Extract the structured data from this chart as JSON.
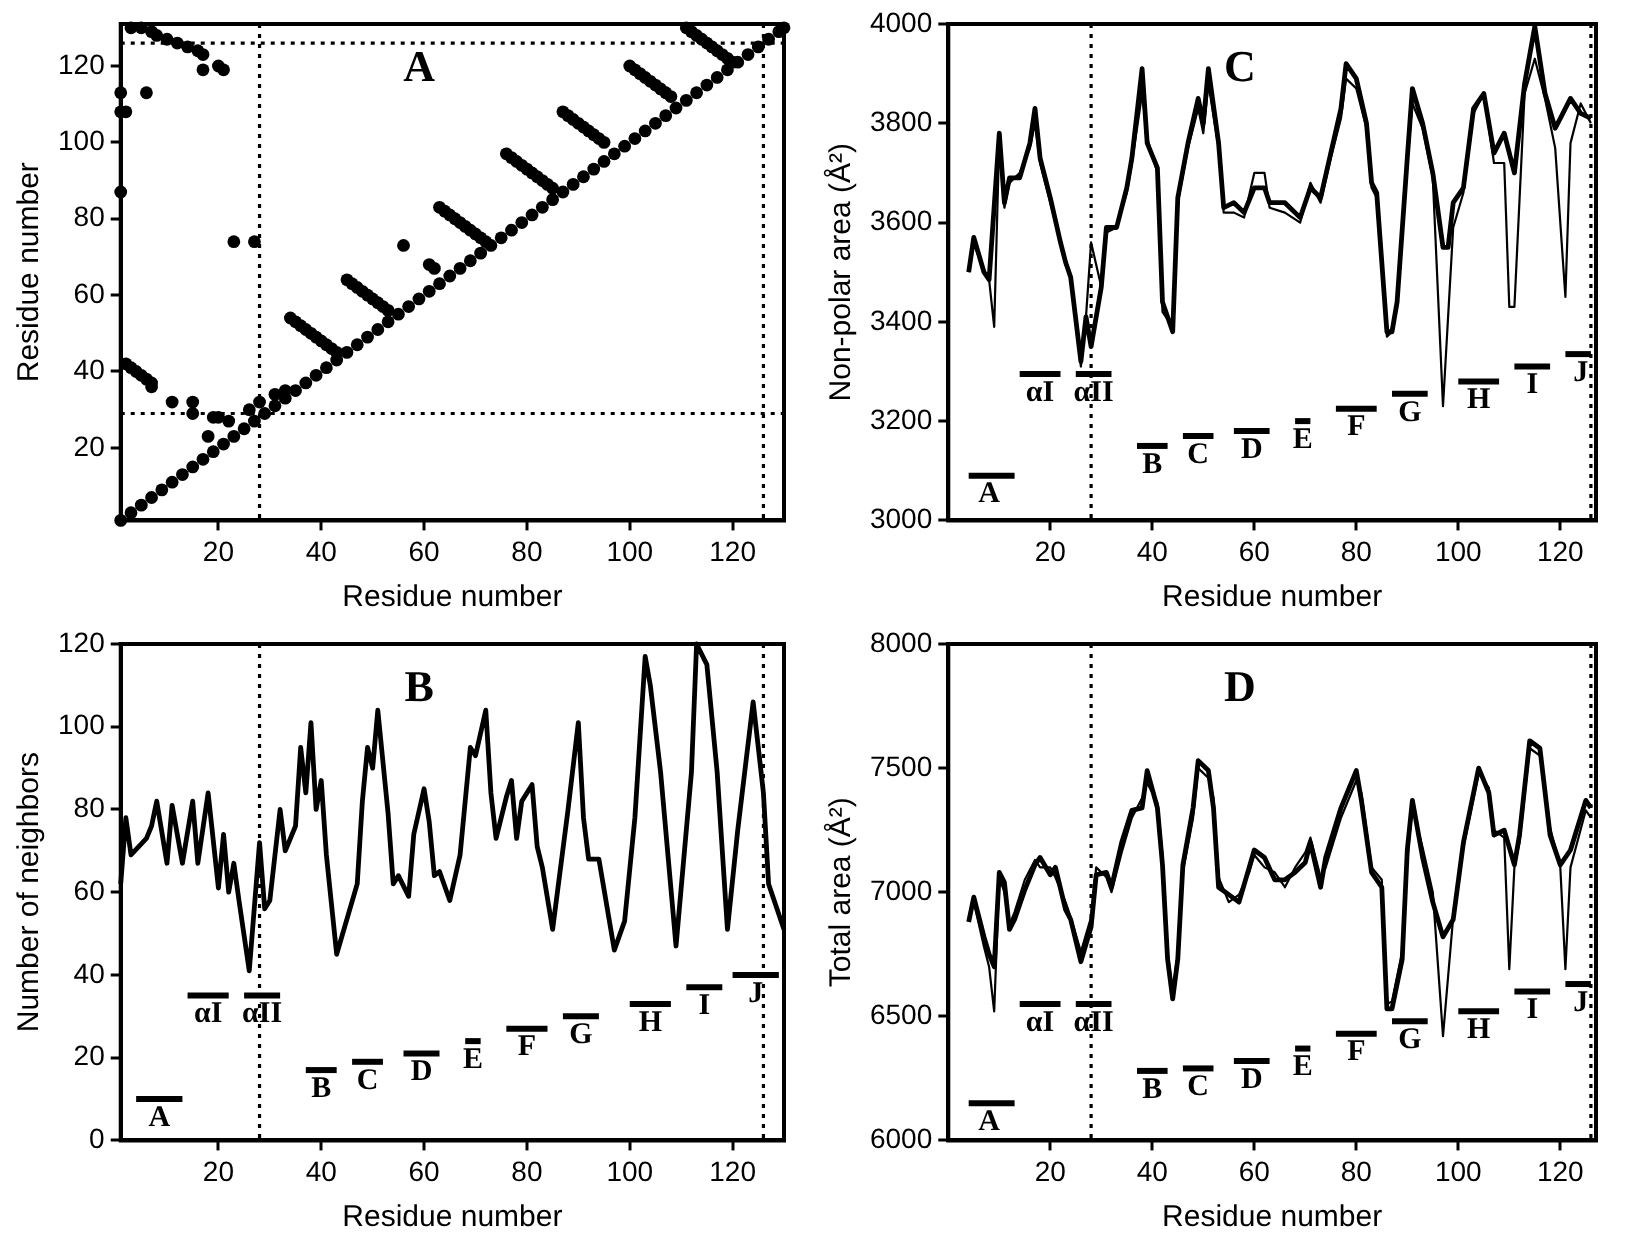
{
  "chart_data": [
    {
      "type": "scatter",
      "title": "A",
      "xlabel": "Residue number",
      "ylabel": "Residue number",
      "xlim": [
        1,
        130
      ],
      "ylim": [
        1,
        131
      ],
      "xticks": [
        20,
        40,
        60,
        80,
        100,
        120
      ],
      "yticks": [
        20,
        40,
        60,
        80,
        100,
        120
      ],
      "marker": "circle",
      "ref_lines": [
        {
          "axis": "x",
          "value": 28,
          "line_style": "dotted"
        },
        {
          "axis": "x",
          "value": 126,
          "line_style": "dotted"
        },
        {
          "axis": "y",
          "value": 29,
          "line_style": "dotted"
        },
        {
          "axis": "y",
          "value": 126,
          "line_style": "dotted"
        }
      ],
      "series": [
        {
          "color": "#000000",
          "x": [
            1,
            3,
            5,
            7,
            9,
            11,
            13,
            15,
            17,
            19,
            21,
            23,
            25,
            27,
            29,
            31,
            33,
            35,
            37,
            39,
            41,
            43,
            45,
            47,
            49,
            51,
            53,
            55,
            57,
            59,
            61,
            63,
            65,
            67,
            69,
            71,
            73,
            75,
            77,
            79,
            81,
            83,
            85,
            87,
            89,
            91,
            93,
            95,
            97,
            99,
            101,
            103,
            105,
            107,
            109,
            111,
            113,
            115,
            117,
            119,
            121,
            123,
            125,
            127,
            129,
            130,
            34,
            35,
            36,
            37,
            38,
            39,
            40,
            41,
            42,
            43,
            45,
            46,
            47,
            48,
            49,
            50,
            51,
            52,
            53,
            63,
            64,
            65,
            66,
            67,
            68,
            69,
            70,
            71,
            72,
            76,
            77,
            78,
            79,
            80,
            81,
            82,
            83,
            84,
            85,
            87,
            88,
            89,
            90,
            91,
            92,
            93,
            94,
            95,
            100,
            101,
            102,
            103,
            104,
            105,
            106,
            107,
            108,
            111,
            112,
            113,
            114,
            115,
            116,
            117,
            118,
            119,
            120,
            3,
            5,
            7,
            8,
            10,
            12,
            14,
            16,
            17,
            17,
            20,
            21,
            1,
            1,
            2,
            6,
            1,
            23,
            27,
            56,
            61,
            62,
            2,
            3,
            4,
            5,
            6,
            7,
            7,
            11,
            15,
            15,
            19,
            20,
            18,
            22,
            26,
            28,
            31,
            33
          ],
          "values": [
            1,
            3,
            5,
            7,
            9,
            11,
            13,
            15,
            17,
            19,
            21,
            23,
            25,
            27,
            29,
            31,
            33,
            35,
            37,
            39,
            41,
            43,
            45,
            47,
            49,
            51,
            53,
            55,
            57,
            59,
            61,
            63,
            65,
            67,
            69,
            71,
            73,
            75,
            77,
            79,
            81,
            83,
            85,
            87,
            89,
            91,
            93,
            95,
            97,
            99,
            101,
            103,
            105,
            107,
            109,
            111,
            113,
            115,
            117,
            119,
            121,
            123,
            125,
            127,
            129,
            130,
            54,
            53,
            52,
            51,
            50,
            49,
            48,
            47,
            46,
            45,
            64,
            63,
            62,
            61,
            60,
            59,
            58,
            57,
            56,
            83,
            82,
            81,
            80,
            79,
            78,
            77,
            76,
            75,
            74,
            97,
            96,
            95,
            94,
            93,
            92,
            91,
            90,
            89,
            88,
            108,
            107,
            106,
            105,
            104,
            103,
            102,
            101,
            100,
            120,
            119,
            118,
            117,
            116,
            115,
            114,
            113,
            112,
            130,
            129,
            128,
            127,
            126,
            125,
            124,
            123,
            122,
            121,
            130,
            130,
            129,
            128,
            127,
            126,
            125,
            124,
            123,
            119,
            120,
            119,
            113,
            108,
            108,
            113,
            87,
            74,
            74,
            73,
            68,
            67,
            42,
            41,
            40,
            39,
            38,
            37,
            36,
            32,
            32,
            29,
            28,
            28,
            23,
            27,
            30,
            32,
            34,
            35
          ]
        }
      ]
    },
    {
      "type": "line",
      "title": "C",
      "xlabel": "Residue number",
      "ylabel": "Non-polar area (Å²)",
      "xlim": [
        0,
        127
      ],
      "ylim": [
        3000,
        4000
      ],
      "xticks": [
        20,
        40,
        60,
        80,
        100,
        120
      ],
      "yticks": [
        3000,
        3200,
        3400,
        3600,
        3800,
        4000
      ],
      "marker": "none",
      "line_style": "solid",
      "ref_lines": [
        {
          "axis": "x",
          "value": 28,
          "line_style": "dotted"
        },
        {
          "axis": "x",
          "value": 126,
          "line_style": "dotted"
        }
      ],
      "annotations": [
        {
          "text": "A",
          "x": 8,
          "y": 3090
        },
        {
          "text": "αI",
          "x": 18,
          "y": 3295
        },
        {
          "text": "αII",
          "x": 28.5,
          "y": 3295
        },
        {
          "text": "B",
          "x": 40,
          "y": 3150
        },
        {
          "text": "C",
          "x": 49,
          "y": 3170
        },
        {
          "text": "D",
          "x": 59.5,
          "y": 3180
        },
        {
          "text": "E",
          "x": 69.5,
          "y": 3200
        },
        {
          "text": "F",
          "x": 80,
          "y": 3225
        },
        {
          "text": "G",
          "x": 90.5,
          "y": 3255
        },
        {
          "text": "H",
          "x": 104,
          "y": 3280
        },
        {
          "text": "I",
          "x": 114.5,
          "y": 3310
        },
        {
          "text": "J",
          "x": 124,
          "y": 3335
        }
      ],
      "series": [
        {
          "color": "#000000",
          "x": [
            4,
            5,
            7,
            8,
            10,
            11,
            12,
            14,
            16,
            17,
            18,
            20,
            22,
            23,
            24,
            26,
            27,
            28,
            30,
            31,
            33,
            35,
            36,
            38,
            39,
            41,
            42,
            44,
            45,
            47,
            49,
            50,
            51,
            53,
            54,
            56,
            58,
            60,
            62,
            63,
            66,
            69,
            71,
            73,
            75,
            77,
            78,
            80,
            82,
            83,
            84,
            86,
            87,
            88,
            90,
            91,
            93,
            95,
            97,
            98,
            99,
            101,
            103,
            105,
            107,
            109,
            111,
            113,
            115,
            117,
            119,
            120,
            122,
            124,
            126
          ],
          "values": [
            3500,
            3570,
            3500,
            3485,
            3780,
            3640,
            3690,
            3690,
            3760,
            3830,
            3730,
            3650,
            3560,
            3520,
            3490,
            3320,
            3410,
            3350,
            3470,
            3590,
            3590,
            3670,
            3730,
            3910,
            3760,
            3710,
            3440,
            3380,
            3650,
            3760,
            3850,
            3800,
            3910,
            3760,
            3630,
            3640,
            3620,
            3670,
            3670,
            3640,
            3640,
            3610,
            3670,
            3650,
            3740,
            3830,
            3920,
            3890,
            3800,
            3680,
            3660,
            3380,
            3380,
            3440,
            3730,
            3870,
            3800,
            3700,
            3550,
            3550,
            3640,
            3670,
            3830,
            3860,
            3740,
            3780,
            3700,
            3880,
            3995,
            3860,
            3790,
            3810,
            3850,
            3820,
            3810
          ]
        },
        {
          "color": "#000000",
          "x": [
            4,
            5,
            7,
            8,
            9,
            10,
            11,
            12,
            14,
            16,
            17,
            18,
            20,
            22,
            23,
            24,
            26,
            27,
            28,
            30,
            31,
            33,
            35,
            36,
            38,
            39,
            41,
            42,
            44,
            45,
            47,
            49,
            50,
            51,
            53,
            54,
            56,
            58,
            60,
            62,
            63,
            66,
            69,
            71,
            73,
            75,
            77,
            78,
            80,
            82,
            83,
            84,
            86,
            87,
            88,
            90,
            91,
            93,
            95,
            97,
            99,
            101,
            103,
            105,
            107,
            109,
            110,
            111,
            113,
            115,
            117,
            119,
            121,
            122,
            124,
            126
          ],
          "values": [
            3500,
            3560,
            3500,
            3485,
            3390,
            3770,
            3630,
            3680,
            3700,
            3750,
            3800,
            3720,
            3640,
            3560,
            3520,
            3490,
            3310,
            3410,
            3560,
            3470,
            3580,
            3590,
            3660,
            3720,
            3860,
            3770,
            3700,
            3420,
            3390,
            3640,
            3750,
            3830,
            3780,
            3880,
            3750,
            3620,
            3620,
            3610,
            3700,
            3700,
            3630,
            3620,
            3600,
            3680,
            3640,
            3730,
            3810,
            3890,
            3870,
            3790,
            3670,
            3650,
            3370,
            3380,
            3430,
            3720,
            3840,
            3790,
            3690,
            3230,
            3590,
            3660,
            3820,
            3860,
            3720,
            3720,
            3430,
            3430,
            3860,
            3930,
            3850,
            3750,
            3450,
            3760,
            3840,
            3800
          ]
        },
        {
          "color": "#000000",
          "x": [
            4,
            13
          ],
          "values": [
            3090,
            3090
          ]
        },
        {
          "color": "#000000",
          "x": [
            14,
            22
          ],
          "values": [
            3295,
            3295
          ]
        },
        {
          "color": "#000000",
          "x": [
            25,
            32
          ],
          "values": [
            3295,
            3295
          ]
        },
        {
          "color": "#000000",
          "x": [
            37,
            43
          ],
          "values": [
            3150,
            3150
          ]
        },
        {
          "color": "#000000",
          "x": [
            46,
            52
          ],
          "values": [
            3170,
            3170
          ]
        },
        {
          "color": "#000000",
          "x": [
            56,
            63
          ],
          "values": [
            3180,
            3180
          ]
        },
        {
          "color": "#000000",
          "x": [
            68,
            71
          ],
          "values": [
            3200,
            3200
          ]
        },
        {
          "color": "#000000",
          "x": [
            76,
            84
          ],
          "values": [
            3225,
            3225
          ]
        },
        {
          "color": "#000000",
          "x": [
            87,
            94
          ],
          "values": [
            3255,
            3255
          ]
        },
        {
          "color": "#000000",
          "x": [
            100,
            108
          ],
          "values": [
            3280,
            3280
          ]
        },
        {
          "color": "#000000",
          "x": [
            111,
            118
          ],
          "values": [
            3310,
            3310
          ]
        },
        {
          "color": "#000000",
          "x": [
            121,
            126
          ],
          "values": [
            3335,
            3335
          ]
        }
      ]
    },
    {
      "type": "line",
      "title": "B",
      "xlabel": "Residue number",
      "ylabel": "Number of neighbors",
      "xlim": [
        1,
        130
      ],
      "ylim": [
        0,
        120
      ],
      "xticks": [
        20,
        40,
        60,
        80,
        100,
        120
      ],
      "yticks": [
        0,
        20,
        40,
        60,
        80,
        100,
        120
      ],
      "marker": "none",
      "line_style": "solid",
      "ref_lines": [
        {
          "axis": "x",
          "value": 28,
          "line_style": "dotted"
        },
        {
          "axis": "x",
          "value": 126,
          "line_style": "dotted"
        }
      ],
      "annotations": [
        {
          "text": "A",
          "x": 8.5,
          "y": 10
        },
        {
          "text": "αI",
          "x": 18,
          "y": 35
        },
        {
          "text": "αII",
          "x": 28.5,
          "y": 35
        },
        {
          "text": "B",
          "x": 40,
          "y": 17
        },
        {
          "text": "C",
          "x": 49,
          "y": 19
        },
        {
          "text": "D",
          "x": 59.5,
          "y": 21
        },
        {
          "text": "E",
          "x": 69.5,
          "y": 24
        },
        {
          "text": "F",
          "x": 80,
          "y": 27
        },
        {
          "text": "G",
          "x": 90.5,
          "y": 30
        },
        {
          "text": "H",
          "x": 104,
          "y": 33
        },
        {
          "text": "I",
          "x": 114.5,
          "y": 37
        },
        {
          "text": "J",
          "x": 124.5,
          "y": 40
        }
      ],
      "series": [
        {
          "color": "#000000",
          "x": [
            1,
            2,
            3,
            6,
            7,
            8,
            10,
            11,
            13,
            15,
            16,
            18,
            20,
            21,
            22,
            23,
            24,
            26,
            28,
            29,
            30,
            32,
            33,
            35,
            36,
            37,
            38,
            39,
            40,
            41,
            43,
            47,
            48,
            49,
            50,
            51,
            53,
            54,
            55,
            57,
            58,
            60,
            61,
            62,
            63,
            65,
            67,
            69,
            70,
            72,
            73,
            74,
            76,
            77,
            78,
            79,
            81,
            82,
            83,
            85,
            88,
            90,
            91,
            92,
            94,
            97,
            99,
            101,
            103,
            104,
            106,
            109,
            112,
            113,
            115,
            117,
            119,
            121,
            124,
            126,
            127,
            130
          ],
          "values": [
            62,
            78,
            69,
            73,
            76,
            82,
            67,
            81,
            67,
            82,
            67,
            84,
            61,
            74,
            60,
            67,
            58,
            41,
            72,
            56,
            58,
            80,
            70,
            76,
            95,
            84,
            101,
            80,
            87,
            69,
            45,
            62,
            82,
            95,
            90,
            104,
            79,
            62,
            64,
            59,
            74,
            85,
            77,
            64,
            65,
            58,
            69,
            95,
            93,
            104,
            84,
            73,
            83,
            87,
            73,
            82,
            86,
            71,
            66,
            51,
            80,
            101,
            78,
            68,
            68,
            46,
            53,
            78,
            117,
            110,
            89,
            47,
            89,
            120,
            115,
            89,
            51,
            75,
            106,
            84,
            62,
            51
          ]
        },
        {
          "color": "#000000",
          "x": [
            4,
            13
          ],
          "values": [
            10,
            10
          ]
        },
        {
          "color": "#000000",
          "x": [
            14,
            22
          ],
          "values": [
            35,
            35
          ]
        },
        {
          "color": "#000000",
          "x": [
            25,
            32
          ],
          "values": [
            35,
            35
          ]
        },
        {
          "color": "#000000",
          "x": [
            37,
            43
          ],
          "values": [
            17,
            17
          ]
        },
        {
          "color": "#000000",
          "x": [
            46,
            52
          ],
          "values": [
            19,
            19
          ]
        },
        {
          "color": "#000000",
          "x": [
            56,
            63
          ],
          "values": [
            21,
            21
          ]
        },
        {
          "color": "#000000",
          "x": [
            68,
            71
          ],
          "values": [
            24,
            24
          ]
        },
        {
          "color": "#000000",
          "x": [
            76,
            84
          ],
          "values": [
            27,
            27
          ]
        },
        {
          "color": "#000000",
          "x": [
            87,
            94
          ],
          "values": [
            30,
            30
          ]
        },
        {
          "color": "#000000",
          "x": [
            100,
            108
          ],
          "values": [
            33,
            33
          ]
        },
        {
          "color": "#000000",
          "x": [
            111,
            118
          ],
          "values": [
            37,
            37
          ]
        },
        {
          "color": "#000000",
          "x": [
            120,
            129
          ],
          "values": [
            40,
            40
          ]
        }
      ]
    },
    {
      "type": "line",
      "title": "D",
      "xlabel": "Residue number",
      "ylabel": "Total area (Å²)",
      "xlim": [
        0,
        127
      ],
      "ylim": [
        6000,
        8000
      ],
      "xticks": [
        20,
        40,
        60,
        80,
        100,
        120
      ],
      "yticks": [
        6000,
        6500,
        7000,
        7500,
        8000
      ],
      "marker": "none",
      "line_style": "solid",
      "ref_lines": [
        {
          "axis": "x",
          "value": 28,
          "line_style": "dotted"
        },
        {
          "axis": "x",
          "value": 126,
          "line_style": "dotted"
        }
      ],
      "annotations": [
        {
          "text": "A",
          "x": 8,
          "y": 6150
        },
        {
          "text": "αI",
          "x": 18,
          "y": 6550
        },
        {
          "text": "αII",
          "x": 28.5,
          "y": 6550
        },
        {
          "text": "B",
          "x": 40,
          "y": 6280
        },
        {
          "text": "C",
          "x": 49,
          "y": 6290
        },
        {
          "text": "D",
          "x": 59.5,
          "y": 6320
        },
        {
          "text": "E",
          "x": 69.5,
          "y": 6370
        },
        {
          "text": "F",
          "x": 80,
          "y": 6430
        },
        {
          "text": "G",
          "x": 90.5,
          "y": 6480
        },
        {
          "text": "H",
          "x": 104,
          "y": 6520
        },
        {
          "text": "I",
          "x": 114.5,
          "y": 6600
        },
        {
          "text": "J",
          "x": 124,
          "y": 6630
        }
      ],
      "series": [
        {
          "color": "#000000",
          "x": [
            4,
            5,
            7,
            8,
            9,
            10,
            11,
            12,
            13,
            15,
            17,
            18,
            20,
            21,
            23,
            24,
            26,
            28,
            29,
            31,
            32,
            34,
            36,
            38,
            39,
            41,
            42,
            43,
            44,
            45,
            46,
            48,
            49,
            51,
            52,
            53,
            55,
            57,
            59,
            60,
            62,
            64,
            66,
            68,
            70,
            71,
            73,
            74,
            77,
            80,
            81,
            83,
            85,
            86,
            87,
            89,
            90,
            91,
            93,
            95,
            97,
            99,
            101,
            104,
            106,
            107,
            109,
            111,
            112,
            114,
            116,
            118,
            120,
            122,
            125,
            126
          ],
          "values": [
            6880,
            6980,
            6820,
            6750,
            6700,
            7080,
            7040,
            6850,
            6890,
            7010,
            7110,
            7140,
            7070,
            7100,
            6930,
            6890,
            6720,
            6860,
            7070,
            7080,
            7020,
            7200,
            7330,
            7340,
            7490,
            7340,
            7110,
            6730,
            6570,
            6730,
            7110,
            7340,
            7530,
            7490,
            7340,
            7020,
            6990,
            6960,
            7100,
            7170,
            7140,
            7050,
            7050,
            7080,
            7120,
            7200,
            7020,
            7140,
            7340,
            7490,
            7370,
            7080,
            7020,
            6530,
            6530,
            6730,
            7170,
            7370,
            7140,
            6960,
            6820,
            6890,
            7200,
            7500,
            7400,
            7230,
            7250,
            7110,
            7230,
            7610,
            7580,
            7230,
            7110,
            7170,
            7370,
            7340
          ]
        },
        {
          "color": "#000000",
          "x": [
            4,
            5,
            7,
            8,
            9,
            10,
            11,
            12,
            13,
            15,
            17,
            18,
            20,
            21,
            23,
            24,
            26,
            28,
            29,
            31,
            32,
            34,
            36,
            38,
            39,
            41,
            42,
            43,
            44,
            45,
            46,
            48,
            49,
            51,
            52,
            53,
            55,
            57,
            59,
            60,
            62,
            64,
            66,
            68,
            70,
            71,
            73,
            74,
            77,
            80,
            81,
            83,
            85,
            86,
            87,
            89,
            90,
            91,
            93,
            95,
            97,
            99,
            101,
            104,
            106,
            107,
            109,
            110,
            111,
            112,
            114,
            116,
            118,
            120,
            121,
            122,
            125,
            126
          ],
          "values": [
            6900,
            6960,
            6780,
            6700,
            6520,
            7060,
            7000,
            6870,
            6920,
            7050,
            7130,
            7100,
            7100,
            7060,
            6960,
            6900,
            6760,
            6900,
            7100,
            7060,
            7000,
            7160,
            7300,
            7380,
            7440,
            7360,
            7150,
            6760,
            6600,
            6760,
            7080,
            7300,
            7500,
            7460,
            7380,
            7060,
            6960,
            6990,
            7080,
            7150,
            7100,
            7080,
            7020,
            7100,
            7160,
            7220,
            7060,
            7100,
            7300,
            7450,
            7400,
            7100,
            7050,
            6550,
            6560,
            6760,
            7130,
            7340,
            7180,
            7000,
            6420,
            6900,
            7180,
            7480,
            7420,
            7250,
            7220,
            6690,
            7100,
            7200,
            7580,
            7550,
            7260,
            7100,
            6690,
            7100,
            7330,
            7300
          ]
        },
        {
          "color": "#000000",
          "x": [
            4,
            13
          ],
          "values": [
            6150,
            6150
          ]
        },
        {
          "color": "#000000",
          "x": [
            14,
            22
          ],
          "values": [
            6550,
            6550
          ]
        },
        {
          "color": "#000000",
          "x": [
            25,
            32
          ],
          "values": [
            6550,
            6550
          ]
        },
        {
          "color": "#000000",
          "x": [
            37,
            43
          ],
          "values": [
            6280,
            6280
          ]
        },
        {
          "color": "#000000",
          "x": [
            46,
            52
          ],
          "values": [
            6290,
            6290
          ]
        },
        {
          "color": "#000000",
          "x": [
            56,
            63
          ],
          "values": [
            6320,
            6320
          ]
        },
        {
          "color": "#000000",
          "x": [
            68,
            71
          ],
          "values": [
            6370,
            6370
          ]
        },
        {
          "color": "#000000",
          "x": [
            76,
            84
          ],
          "values": [
            6430,
            6430
          ]
        },
        {
          "color": "#000000",
          "x": [
            87,
            94
          ],
          "values": [
            6480,
            6480
          ]
        },
        {
          "color": "#000000",
          "x": [
            100,
            108
          ],
          "values": [
            6520,
            6520
          ]
        },
        {
          "color": "#000000",
          "x": [
            111,
            118
          ],
          "values": [
            6600,
            6600
          ]
        },
        {
          "color": "#000000",
          "x": [
            121,
            126
          ],
          "values": [
            6630,
            6630
          ]
        }
      ]
    }
  ]
}
